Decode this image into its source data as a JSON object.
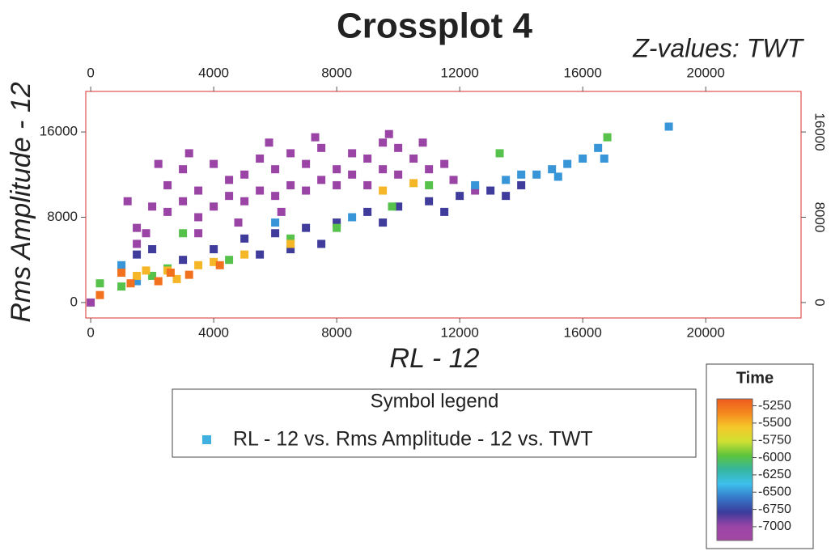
{
  "chart_data": {
    "type": "scatter",
    "title": "Crossplot 4",
    "subtitle": "Z-values: TWT",
    "xlabel": "RL - 12",
    "ylabel": "Rms Amplitude - 12",
    "legend_title": "Symbol legend",
    "xlim": [
      -160,
      23100
    ],
    "ylim": [
      -1450,
      19800
    ],
    "xticks": [
      0,
      4000,
      8000,
      12000,
      16000,
      20000
    ],
    "yticks": [
      0,
      8000,
      16000
    ],
    "frame_color": "#e05050",
    "x": [
      2500,
      3000,
      3500,
      4000,
      4500,
      5000,
      5500,
      6000,
      6500,
      7000,
      7500,
      8000,
      8500,
      9000,
      9500,
      10000,
      10500,
      10800,
      2000,
      2500,
      3000,
      3500,
      4000,
      4500,
      5000,
      5500,
      6000,
      6500,
      7000,
      7500,
      8000,
      8500,
      9000,
      9500,
      10000,
      11000,
      11500,
      1500,
      1800,
      1200,
      2200,
      3200,
      5800,
      7300,
      9700,
      0,
      11800,
      12500,
      1500,
      3500,
      4800,
      6200,
      5000,
      6000,
      7000,
      8000,
      9000,
      10000,
      11000,
      12000,
      13000,
      14000,
      4000,
      3000,
      7500,
      9500,
      11500,
      13500,
      2000,
      1500,
      6500,
      5500,
      13500,
      14500,
      15000,
      15500,
      16000,
      16500,
      16700,
      14000,
      15200,
      12500,
      18800,
      1000,
      1500,
      6000,
      8500,
      16800,
      13300,
      1000,
      300,
      2000,
      4500,
      6500,
      8000,
      9800,
      11000,
      3000,
      2500,
      1500,
      2500,
      3500,
      4000,
      5000,
      6500,
      9500,
      10500,
      2800,
      1800,
      300,
      1000,
      2200,
      2600,
      3200,
      4200,
      1300
    ],
    "series": [
      {
        "name": "RL - 12 vs. Rms Amplitude - 12 vs. TWT",
        "color": "#3fb0e0",
        "values": [
          11000,
          12500,
          10500,
          13000,
          11500,
          12000,
          13500,
          12500,
          14000,
          13000,
          14500,
          12500,
          14000,
          13500,
          15000,
          14500,
          13500,
          15000,
          9000,
          8500,
          9500,
          8000,
          9000,
          10000,
          9500,
          10500,
          10000,
          11000,
          10500,
          11500,
          11000,
          12000,
          11000,
          12500,
          12000,
          12500,
          13000,
          7000,
          6500,
          9500,
          13000,
          14000,
          15000,
          15500,
          15800,
          0,
          11500,
          10500,
          5500,
          6500,
          7500,
          8500,
          6000,
          6500,
          7000,
          7500,
          8500,
          9000,
          9500,
          10000,
          10500,
          11000,
          5000,
          4000,
          5500,
          7500,
          8500,
          10000,
          5000,
          4500,
          5000,
          4500,
          11500,
          12000,
          12500,
          13000,
          13500,
          14500,
          13500,
          12000,
          11800,
          11000,
          16500,
          3500,
          2000,
          7500,
          8000,
          15500,
          14000,
          1500,
          1800,
          2500,
          4000,
          6000,
          7000,
          9000,
          11000,
          6500,
          3200,
          2500,
          3000,
          3500,
          3800,
          4500,
          5500,
          10500,
          11200,
          2200,
          3000,
          700,
          2800,
          2000,
          2800,
          2600,
          3500,
          1800
        ],
        "z": [
          -7000,
          -7000,
          -7000,
          -7000,
          -7000,
          -7000,
          -7000,
          -7000,
          -7000,
          -7000,
          -7000,
          -7000,
          -7000,
          -7000,
          -7000,
          -7000,
          -7000,
          -7000,
          -7000,
          -7000,
          -7000,
          -7000,
          -7000,
          -7000,
          -7000,
          -7000,
          -7000,
          -7000,
          -7000,
          -7000,
          -7000,
          -7000,
          -7000,
          -7000,
          -7000,
          -7000,
          -7000,
          -7000,
          -7000,
          -7000,
          -7000,
          -7000,
          -7000,
          -7000,
          -7000,
          -7000,
          -7000,
          -7000,
          -7000,
          -7000,
          -7000,
          -7000,
          -6800,
          -6800,
          -6800,
          -6800,
          -6800,
          -6800,
          -6800,
          -6800,
          -6800,
          -6800,
          -6800,
          -6800,
          -6800,
          -6800,
          -6800,
          -6800,
          -6800,
          -6800,
          -6800,
          -6800,
          -6500,
          -6500,
          -6500,
          -6500,
          -6500,
          -6500,
          -6500,
          -6500,
          -6500,
          -6500,
          -6500,
          -6500,
          -6500,
          -6500,
          -6500,
          -6000,
          -6000,
          -6000,
          -6000,
          -6000,
          -6000,
          -6000,
          -6000,
          -6000,
          -6000,
          -6000,
          -6000,
          -5500,
          -5500,
          -5500,
          -5500,
          -5500,
          -5500,
          -5500,
          -5500,
          -5500,
          -5500,
          -5250,
          -5250,
          -5250,
          -5250,
          -5250,
          -5250,
          -5250
        ]
      }
    ],
    "colorbar": {
      "title": "Time",
      "zlim": [
        -7200,
        -5150
      ],
      "ticks": [
        -5250,
        -5500,
        -5750,
        -6000,
        -6250,
        -6500,
        -6750,
        -7000
      ],
      "colorscale": [
        "#a349a4",
        "#9a44a6",
        "#3a3c9c",
        "#3577c8",
        "#3dc0ec",
        "#35b6a0",
        "#5cc43c",
        "#cfe032",
        "#f5c82a",
        "#f5891f",
        "#ee5a1e"
      ]
    }
  }
}
